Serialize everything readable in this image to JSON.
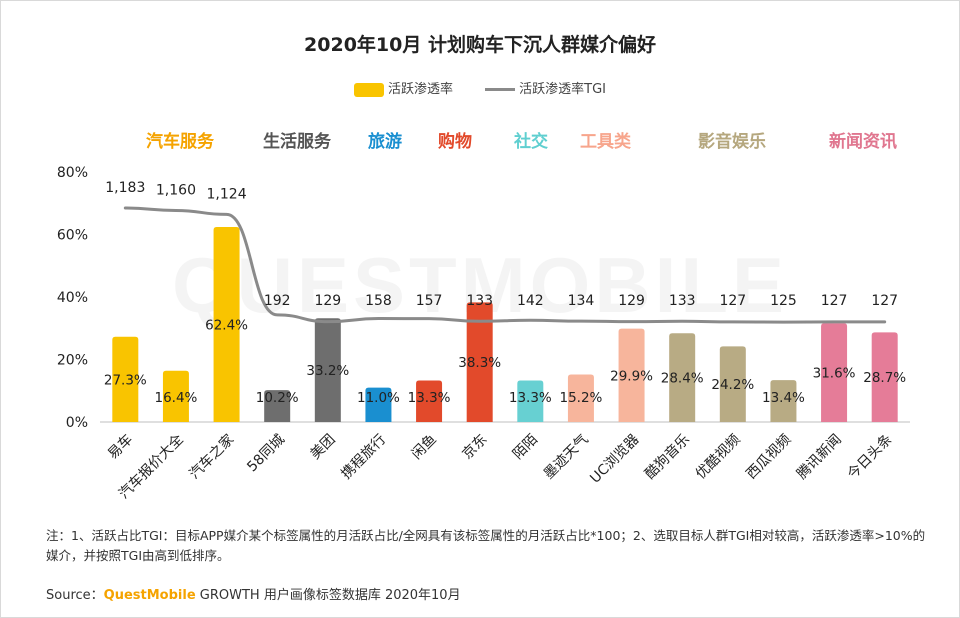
{
  "title": "2020年10月 计划购车下沉人群媒介偏好",
  "legend": {
    "bar": "活跃渗透率",
    "line": "活跃渗透率TGI"
  },
  "categories": [
    {
      "label": "汽车服务",
      "color": "#f5a300"
    },
    {
      "label": "生活服务",
      "color": "#555555"
    },
    {
      "label": "旅游",
      "color": "#1a8fd0"
    },
    {
      "label": "购物",
      "color": "#e24a2b"
    },
    {
      "label": "社交",
      "color": "#5fcfd0"
    },
    {
      "label": "工具类",
      "color": "#f7a58c"
    },
    {
      "label": "影音娱乐",
      "color": "#b5a77e"
    },
    {
      "label": "新闻资讯",
      "color": "#e0768f"
    }
  ],
  "chart_data": {
    "type": "bar",
    "title": "2020年10月 计划购车下沉人群媒介偏好",
    "ylim": [
      0,
      80
    ],
    "yticks": [
      "0%",
      "20%",
      "40%",
      "60%",
      "80%"
    ],
    "categories": [
      "易车",
      "汽车报价大全",
      "汽车之家",
      "58同城",
      "美团",
      "携程旅行",
      "闲鱼",
      "京东",
      "陌陌",
      "墨迹天气",
      "UC浏览器",
      "酷狗音乐",
      "优酷视频",
      "西瓜视频",
      "腾讯新闻",
      "今日头条"
    ],
    "series": [
      {
        "name": "活跃渗透率",
        "type": "bar",
        "unit": "%",
        "values": [
          27.3,
          16.4,
          62.4,
          10.2,
          33.2,
          11.0,
          13.3,
          38.3,
          13.3,
          15.2,
          29.9,
          28.4,
          24.2,
          13.4,
          31.6,
          28.7
        ],
        "labels": [
          "27.3%",
          "16.4%",
          "62.4%",
          "10.2%",
          "33.2%",
          "11.0%",
          "13.3%",
          "38.3%",
          "13.3%",
          "15.2%",
          "29.9%",
          "28.4%",
          "24.2%",
          "13.4%",
          "31.6%",
          "28.7%"
        ],
        "colors": [
          "#f9c400",
          "#f9c400",
          "#f9c400",
          "#6e6e6e",
          "#6e6e6e",
          "#1a8fd0",
          "#e24a2b",
          "#e24a2b",
          "#67d0d2",
          "#f7b59c",
          "#f7b59c",
          "#b8ab84",
          "#b8ab84",
          "#b8ab84",
          "#e57c98",
          "#e57c98"
        ]
      },
      {
        "name": "活跃渗透率TGI",
        "type": "line",
        "values": [
          1183,
          1160,
          1124,
          192,
          129,
          158,
          157,
          133,
          142,
          134,
          129,
          133,
          127,
          125,
          127,
          127
        ],
        "labels": [
          "1,183",
          "1,160",
          "1,124",
          "192",
          "129",
          "158",
          "157",
          "133",
          "142",
          "134",
          "129",
          "133",
          "127",
          "125",
          "127",
          "127"
        ]
      }
    ]
  },
  "note": "注：1、活跃占比TGI：目标APP媒介某个标签属性的月活跃占比/全网具有该标签属性的月活跃占比*100；2、选取目标人群TGI相对较高，活跃渗透率>10%的媒介，并按照TGI由高到低排序。",
  "source": {
    "prefix": "Source：",
    "brand": "QuestMobile",
    "rest": " GROWTH 用户画像标签数据库 2020年10月"
  },
  "watermark": "QUESTMOBILE"
}
